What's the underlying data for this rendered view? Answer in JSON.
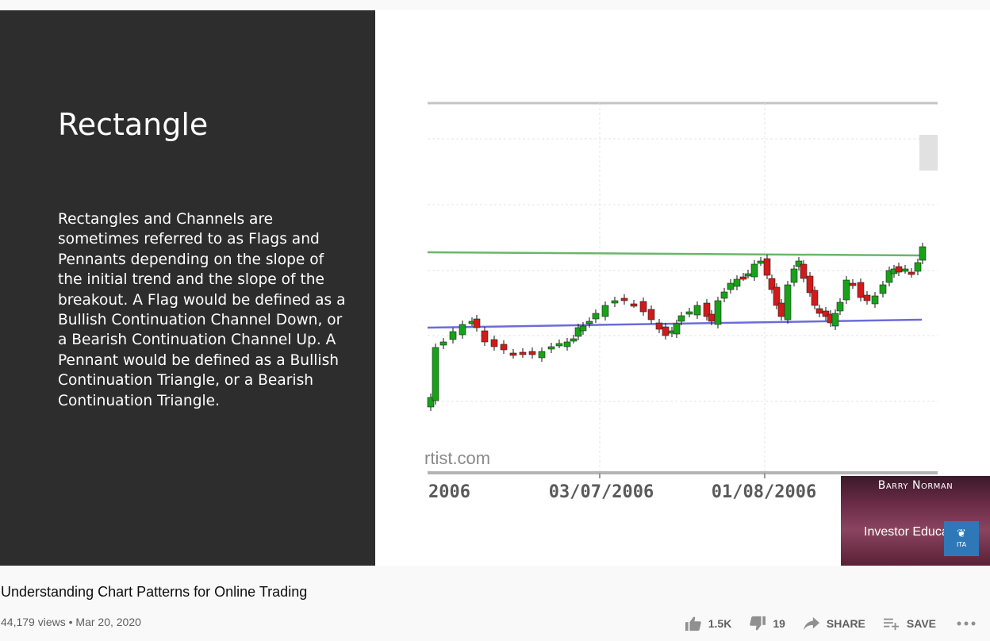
{
  "slide": {
    "title": "Rectangle",
    "body": "Rectangles and Channels are sometimes referred to as Flags and Pennants depending on the slope of the initial trend and the slope of the breakout. A Flag would be defined as a Bullish Continuation Channel Down, or a Bearish Continuation Channel Up. A Pennant would be defined as a Bullish Continuation Triangle, or a Bearish Continuation Triangle."
  },
  "chart": {
    "watermark_text": "rtist.com",
    "x_tick_labels": [
      "2006",
      "03/07/2006",
      "01/08/2006"
    ],
    "up_color": "#17a317",
    "down_color": "#d21a1a",
    "resistance_color": "#6cb56c",
    "support_color": "#6c6cd8"
  },
  "overlay": {
    "presenter": "Barry Norman",
    "subtitle": "Investor Educat",
    "badge": "ITA"
  },
  "video": {
    "title": "Understanding Chart Patterns for Online Trading",
    "views": "44,179 views",
    "separator": "•",
    "date": "Mar 20, 2020"
  },
  "actions": {
    "like_count": "1.5K",
    "dislike_count": "19",
    "share_label": "SHARE",
    "save_label": "SAVE"
  },
  "icons": {
    "like": "thumbs-up-icon",
    "dislike": "thumbs-down-icon",
    "share": "share-arrow-icon",
    "save": "playlist-add-icon",
    "more": "more-horizontal-icon"
  }
}
